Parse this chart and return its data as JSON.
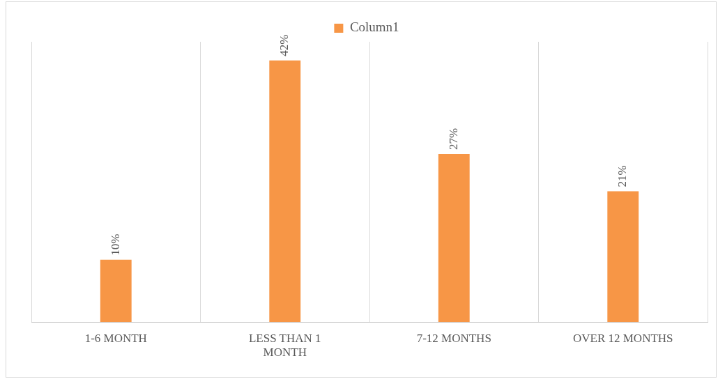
{
  "chart_data": {
    "type": "bar",
    "categories": [
      "1-6 MONTH",
      "LESS THAN 1 MONTH",
      "7-12 MONTHS",
      "OVER 12 MONTHS"
    ],
    "series": [
      {
        "name": "Column1",
        "color": "#f79646",
        "values": [
          10,
          42,
          27,
          21
        ],
        "value_labels": [
          "10%",
          "42%",
          "27%",
          "21%"
        ]
      }
    ],
    "legend": "top",
    "grid": "x",
    "relative": false
  }
}
